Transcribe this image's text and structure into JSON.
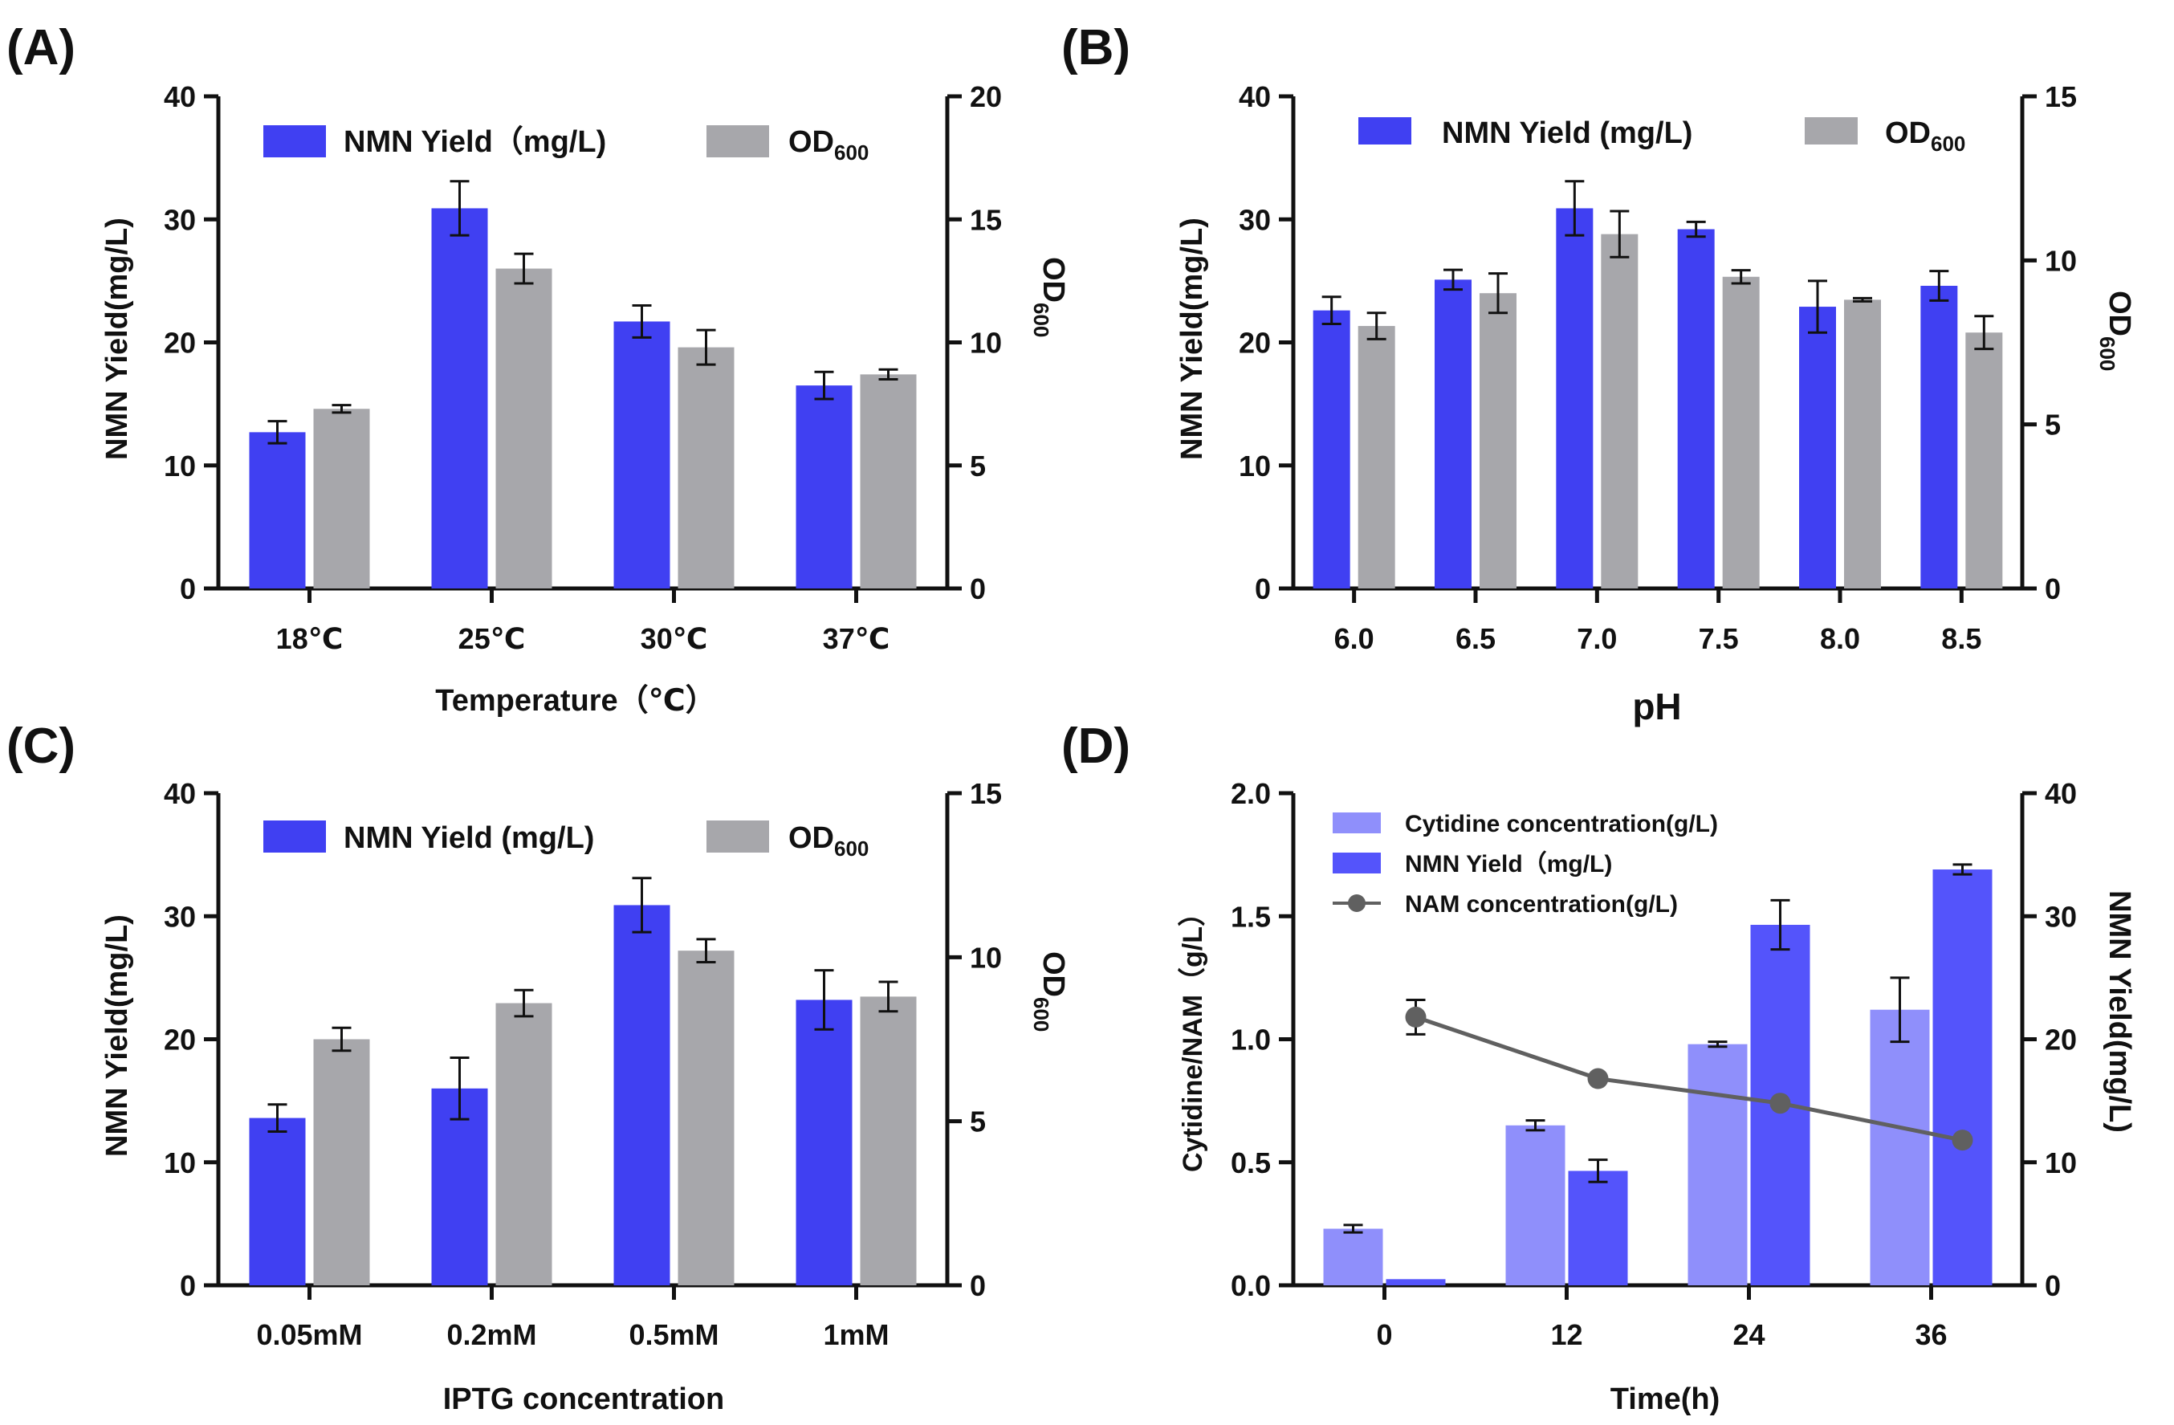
{
  "colors": {
    "nmn": "#4040f2",
    "od": "#a7a7ab",
    "cyt": "#8f8ffb",
    "nmnD": "#5454fb",
    "nam": "#606060",
    "axis": "#111111"
  },
  "chart_data": [
    {
      "type": "bar",
      "panel_label": "(A)",
      "xlabel": "Temperature（℃）",
      "ylabel": "NMN Yield(mg/L)",
      "y2label_main": "OD",
      "y2label_sub": "600",
      "categories": [
        "18℃",
        "25℃",
        "30℃",
        "37℃"
      ],
      "ylim": [
        0,
        40
      ],
      "yticks": [
        "0",
        "10",
        "20",
        "30",
        "40"
      ],
      "y2lim": [
        0,
        20
      ],
      "y2ticks": [
        "0",
        "5",
        "10",
        "15",
        "20"
      ],
      "legend": {
        "nmn": "NMN Yield（mg/L)",
        "od_main": "OD",
        "od_sub": "600"
      },
      "series": [
        {
          "name": "NMN Yield (mg/L)",
          "axis": "left",
          "values": [
            12.7,
            30.9,
            21.7,
            16.5
          ],
          "errors": [
            0.9,
            2.2,
            1.3,
            1.1
          ]
        },
        {
          "name": "OD600",
          "axis": "right",
          "values": [
            7.3,
            13.0,
            9.8,
            8.7
          ],
          "errors": [
            0.15,
            0.6,
            0.7,
            0.2
          ]
        }
      ]
    },
    {
      "type": "bar",
      "panel_label": "(B)",
      "xlabel": "pH",
      "ylabel": "NMN Yield(mg/L)",
      "y2label_main": "OD",
      "y2label_sub": "600",
      "categories": [
        "6.0",
        "6.5",
        "7.0",
        "7.5",
        "8.0",
        "8.5"
      ],
      "ylim": [
        0,
        40
      ],
      "yticks": [
        "0",
        "10",
        "20",
        "30",
        "40"
      ],
      "y2lim": [
        0,
        15
      ],
      "y2ticks": [
        "0",
        "5",
        "10",
        "15"
      ],
      "legend": {
        "nmn": "NMN Yield (mg/L)",
        "od_main": "OD",
        "od_sub": "600"
      },
      "series": [
        {
          "name": "NMN Yield (mg/L)",
          "axis": "left",
          "values": [
            22.6,
            25.1,
            30.9,
            29.2,
            22.9,
            24.6
          ],
          "errors": [
            1.1,
            0.8,
            2.2,
            0.6,
            2.1,
            1.2
          ]
        },
        {
          "name": "OD600",
          "axis": "right",
          "values": [
            8.0,
            9.0,
            10.8,
            9.5,
            8.8,
            7.8
          ],
          "errors": [
            0.4,
            0.6,
            0.7,
            0.2,
            0.05,
            0.5
          ]
        }
      ]
    },
    {
      "type": "bar",
      "panel_label": "(C)",
      "xlabel": "IPTG concentration",
      "ylabel": "NMN Yield(mg/L)",
      "y2label_main": "OD",
      "y2label_sub": "600",
      "categories": [
        "0.05mM",
        "0.2mM",
        "0.5mM",
        "1mM"
      ],
      "ylim": [
        0,
        40
      ],
      "yticks": [
        "0",
        "10",
        "20",
        "30",
        "40"
      ],
      "y2lim": [
        0,
        15
      ],
      "y2ticks": [
        "0",
        "5",
        "10",
        "15"
      ],
      "legend": {
        "nmn": "NMN Yield (mg/L)",
        "od_main": "OD",
        "od_sub": "600"
      },
      "series": [
        {
          "name": "NMN Yield (mg/L)",
          "axis": "left",
          "values": [
            13.6,
            16.0,
            30.9,
            23.2
          ],
          "errors": [
            1.1,
            2.5,
            2.2,
            2.4
          ]
        },
        {
          "name": "OD600",
          "axis": "right",
          "values": [
            7.5,
            8.6,
            10.2,
            8.8
          ],
          "errors": [
            0.35,
            0.4,
            0.35,
            0.45
          ]
        }
      ]
    },
    {
      "type": "bar+line",
      "panel_label": "(D)",
      "xlabel": "Time(h)",
      "ylabel": "Cytidine/NAM（g/L）",
      "y2label": "NMN Yield(mg/L)",
      "categories": [
        "0",
        "12",
        "24",
        "36"
      ],
      "ylim": [
        0,
        2.0
      ],
      "yticks": [
        "0.0",
        "0.5",
        "1.0",
        "1.5",
        "2.0"
      ],
      "y2lim": [
        0,
        40
      ],
      "y2ticks": [
        "0",
        "10",
        "20",
        "30",
        "40"
      ],
      "legend": {
        "cyt": "Cytidine concentration(g/L)",
        "nmn": "NMN Yield（mg/L)",
        "nam": "NAM concentration(g/L)"
      },
      "series": [
        {
          "name": "Cytidine concentration(g/L)",
          "type": "bar",
          "axis": "left",
          "values": [
            0.23,
            0.65,
            0.98,
            1.12
          ],
          "errors": [
            0.015,
            0.02,
            0.01,
            0.13
          ]
        },
        {
          "name": "NMN Yield (mg/L)",
          "type": "bar",
          "axis": "right",
          "values": [
            0.5,
            9.3,
            29.3,
            33.8
          ],
          "errors": [
            0,
            0.9,
            2.0,
            0.4
          ]
        },
        {
          "name": "NAM concentration(g/L)",
          "type": "line",
          "axis": "left",
          "values": [
            1.09,
            0.84,
            0.74,
            0.59
          ],
          "errors": [
            0.07,
            0,
            0,
            0
          ]
        }
      ]
    }
  ]
}
